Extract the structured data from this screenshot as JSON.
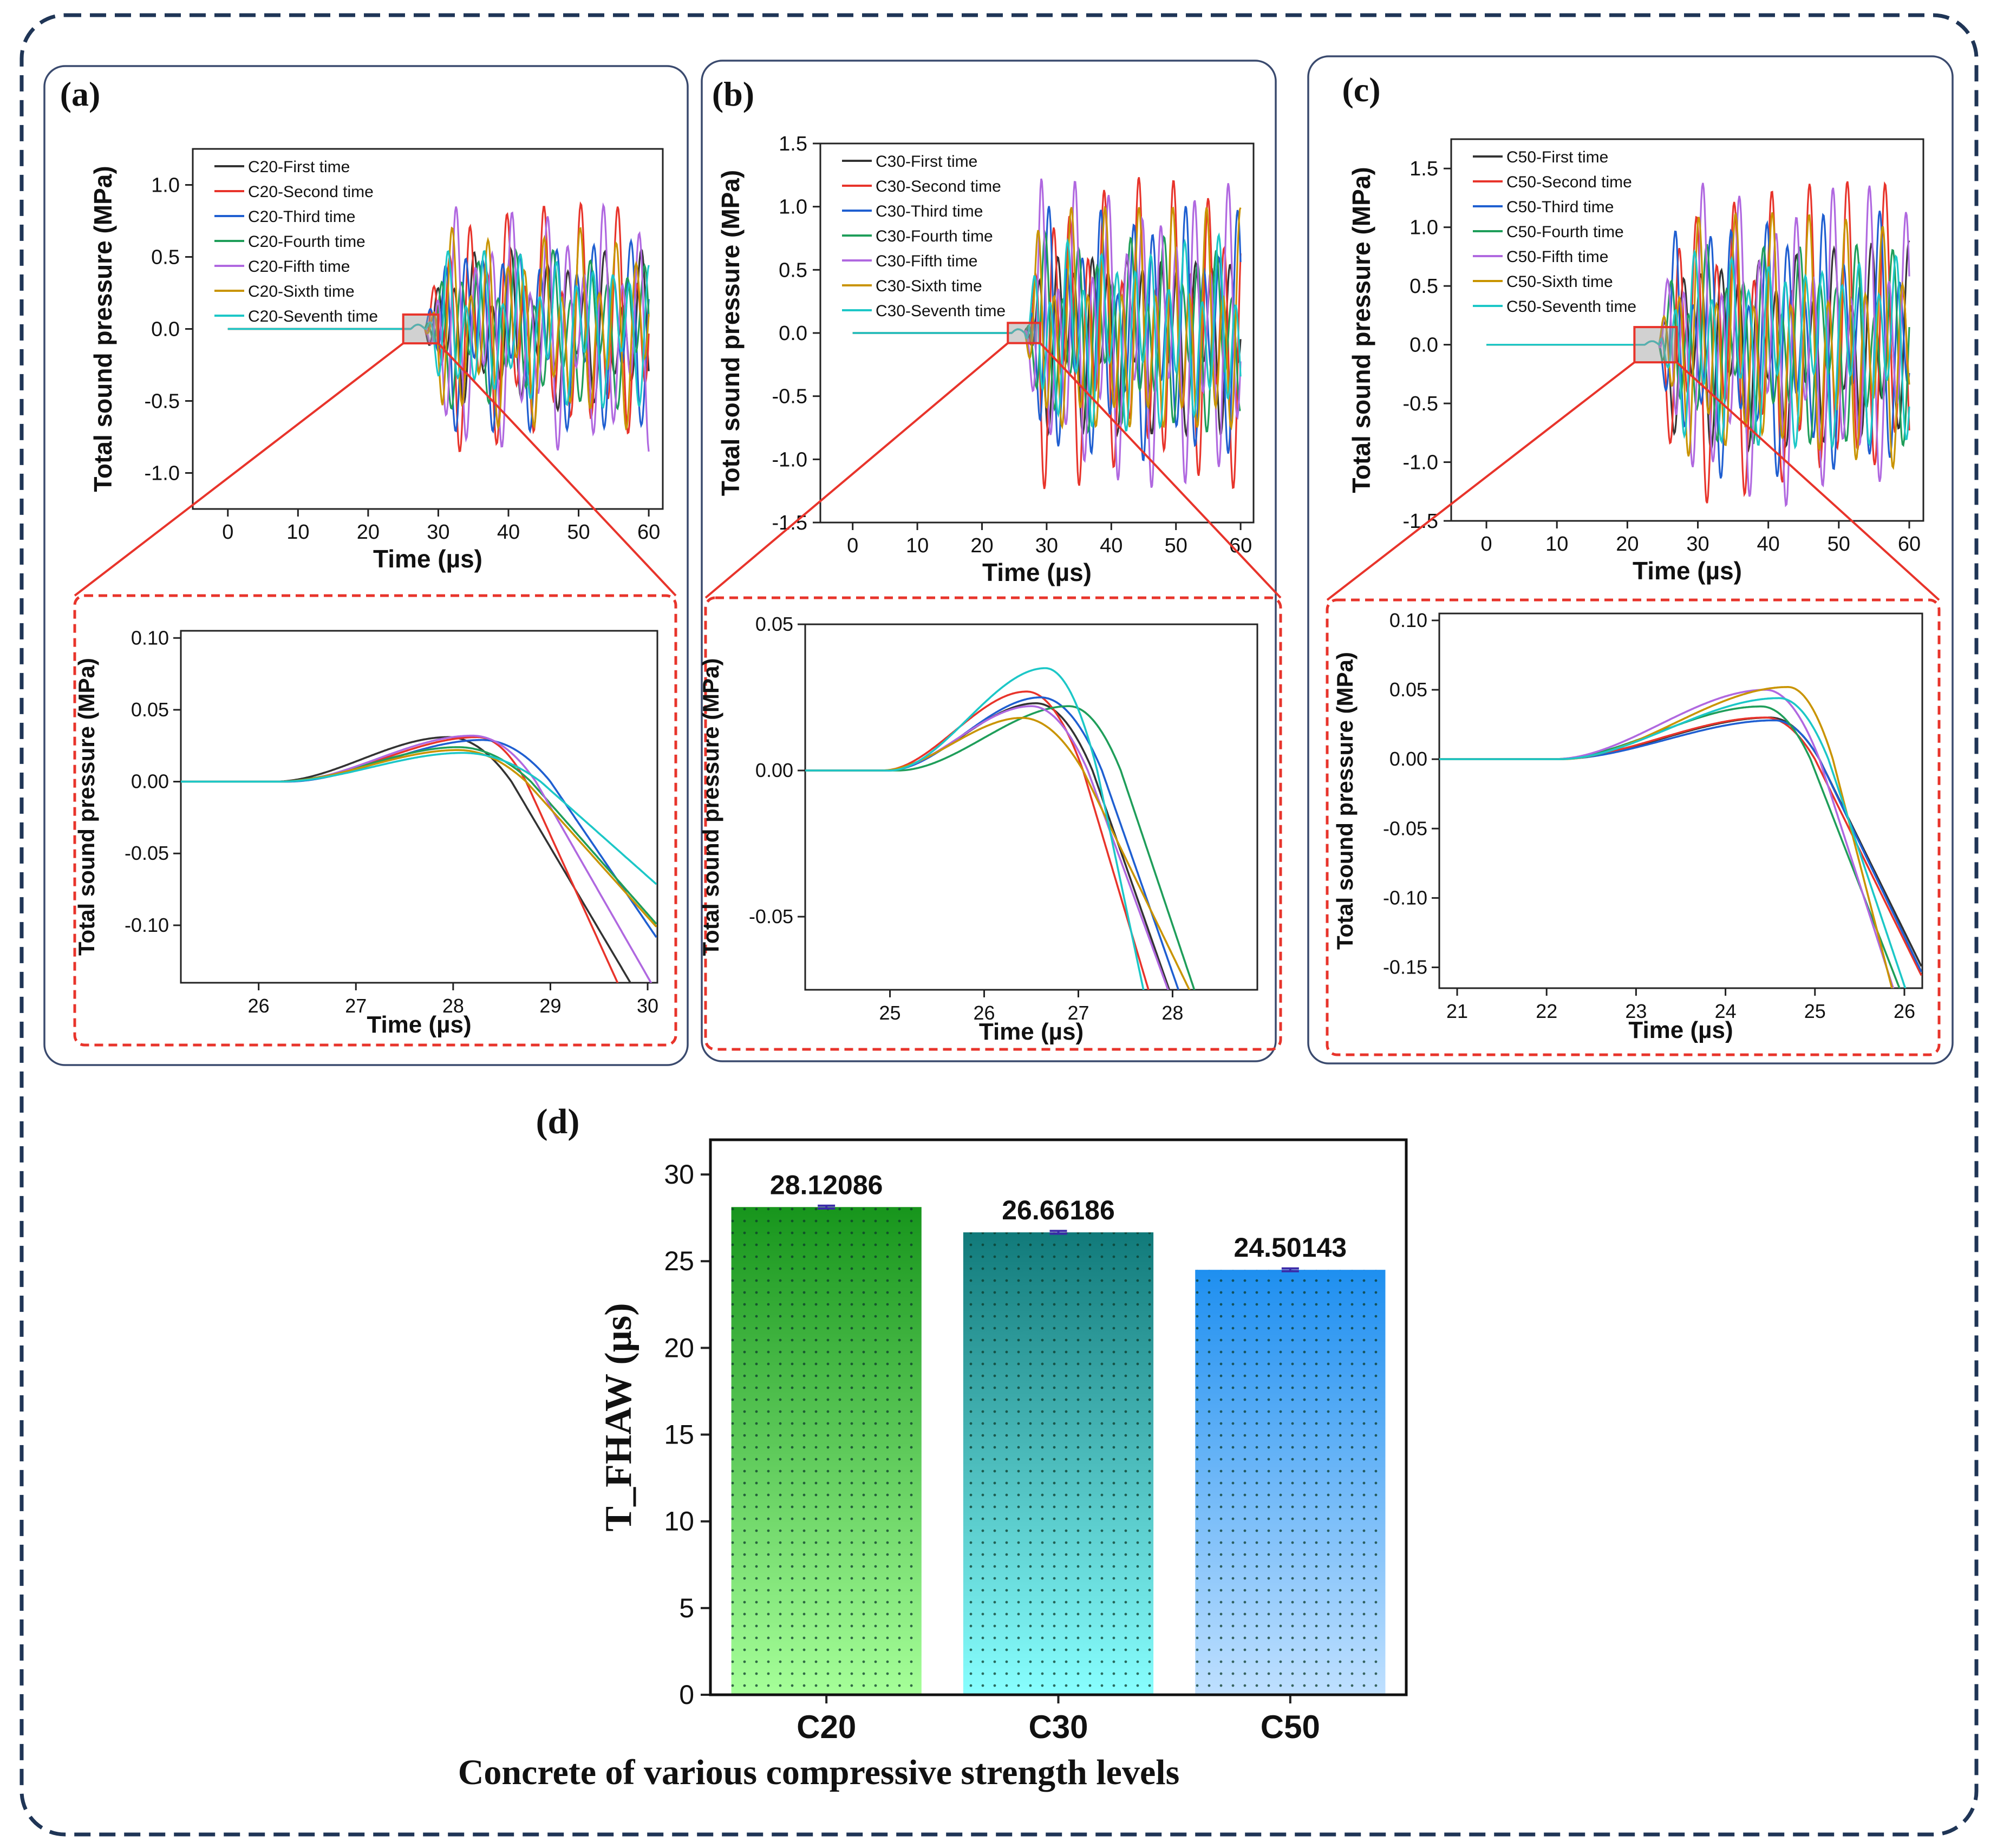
{
  "panel_labels": [
    "(a)",
    "(b)",
    "(c)",
    "(d)"
  ],
  "series_names": [
    "First time",
    "Second time",
    "Third time",
    "Fourth time",
    "Fifth time",
    "Sixth time",
    "Seventh time"
  ],
  "series_colors": [
    "#333333",
    "#e8342b",
    "#1f5fd1",
    "#1f9e5a",
    "#b068e0",
    "#c99400",
    "#1cc7c7"
  ],
  "legends": {
    "a": [
      "C20-First time",
      "C20-Second time",
      "C20-Third time",
      "C20-Fourth time",
      "C20-Fifth time",
      "C20-Sixth time",
      "C20-Seventh time"
    ],
    "b": [
      "C30-First time",
      "C30-Second time",
      "C30-Third time",
      "C30-Fourth time",
      "C30-Fifth time",
      "C30-Sixth time",
      "C30-Seventh time"
    ],
    "c": [
      "C50-First time",
      "C50-Second time",
      "C50-Third time",
      "C50-Fourth time",
      "C50-Fifth time",
      "C50-Sixth time",
      "C50-Seventh time"
    ]
  },
  "axis_text": {
    "time_label": "Time (µs)",
    "pressure_label": "Total sound pressure (MPa)",
    "bar_ylabel": "T_FHAW (µs)",
    "bar_xlabel": "Concrete of various compressive strength levels"
  },
  "chart_data": [
    {
      "id": "a-main",
      "type": "line",
      "xlabel": "Time (µs)",
      "ylabel": "Total sound pressure (MPa)",
      "xlim": [
        -5,
        62
      ],
      "ylim": [
        -1.25,
        1.25
      ],
      "xticks": [
        "0",
        "10",
        "20",
        "30",
        "40",
        "50",
        "60"
      ],
      "yticks": [
        "-1.0",
        "-0.5",
        "0.0",
        "0.5",
        "1.0"
      ],
      "onset_us": 28.1,
      "peak_amplitude_mpa": 0.88,
      "zoom_box_x_us": [
        25,
        30
      ],
      "zoom_box_y_mpa": [
        -0.1,
        0.1
      ]
    },
    {
      "id": "a-zoom",
      "type": "line",
      "xlabel": "Time (µs)",
      "ylabel": "Total sound pressure (MPa)",
      "xlim": [
        25.2,
        30.1
      ],
      "ylim": [
        -0.14,
        0.105
      ],
      "xticks": [
        "26",
        "27",
        "28",
        "29",
        "30"
      ],
      "yticks": [
        "-0.10",
        "-0.05",
        "0.00",
        "0.05",
        "0.10"
      ],
      "peaks_x_us": [
        27.95,
        28.25,
        28.3,
        28.05,
        28.2,
        28.05,
        28.1
      ],
      "peaks_y_mpa": [
        0.031,
        0.031,
        0.029,
        0.024,
        0.032,
        0.022,
        0.02
      ],
      "zero_crossings_us": [
        28.6,
        28.75,
        29.0,
        28.8,
        28.85,
        28.75,
        28.9
      ]
    },
    {
      "id": "b-main",
      "type": "line",
      "xlabel": "Time (µs)",
      "ylabel": "Total sound pressure (MPa)",
      "xlim": [
        -5,
        62
      ],
      "ylim": [
        -1.5,
        1.5
      ],
      "xticks": [
        "0",
        "10",
        "20",
        "30",
        "40",
        "50",
        "60"
      ],
      "yticks": [
        "-1.5",
        "-1.0",
        "-0.5",
        "0.0",
        "0.5",
        "1.0",
        "1.5"
      ],
      "onset_us": 26.6,
      "peak_amplitude_mpa": 1.25,
      "zoom_box_x_us": [
        24,
        29
      ],
      "zoom_box_y_mpa": [
        -0.08,
        0.08
      ]
    },
    {
      "id": "b-zoom",
      "type": "line",
      "xlabel": "Time (µs)",
      "ylabel": "Total sound pressure (MPa)",
      "xlim": [
        24.1,
        28.9
      ],
      "ylim": [
        -0.075,
        0.05
      ],
      "xticks": [
        "25",
        "26",
        "27",
        "28"
      ],
      "yticks": [
        "-0.05",
        "0.00",
        "0.05"
      ],
      "peaks_x_us": [
        26.55,
        26.45,
        26.6,
        26.9,
        26.5,
        26.4,
        26.65
      ],
      "peaks_y_mpa": [
        0.023,
        0.027,
        0.025,
        0.022,
        0.022,
        0.018,
        0.035
      ],
      "zero_crossings_us": [
        27.15,
        27.05,
        27.25,
        27.45,
        27.1,
        27.05,
        27.2
      ]
    },
    {
      "id": "c-main",
      "type": "line",
      "xlabel": "Time (µs)",
      "ylabel": "Total sound pressure (MPa)",
      "xlim": [
        -5,
        62
      ],
      "ylim": [
        -1.5,
        1.75
      ],
      "xticks": [
        "0",
        "10",
        "20",
        "30",
        "40",
        "50",
        "60"
      ],
      "yticks": [
        "-1.5",
        "-1.0",
        "-0.5",
        "0.0",
        "0.5",
        "1.0",
        "1.5"
      ],
      "onset_us": 24.5,
      "peak_amplitude_mpa": 1.4,
      "zoom_box_x_us": [
        21,
        27
      ],
      "zoom_box_y_mpa": [
        -0.15,
        0.15
      ]
    },
    {
      "id": "c-zoom",
      "type": "line",
      "xlabel": "Time (µs)",
      "ylabel": "Total sound pressure (MPa)",
      "xlim": [
        20.8,
        26.2
      ],
      "ylim": [
        -0.165,
        0.105
      ],
      "xticks": [
        "21",
        "22",
        "23",
        "24",
        "25",
        "26"
      ],
      "yticks": [
        "-0.15",
        "-0.10",
        "-0.05",
        "0.00",
        "0.05",
        "0.10"
      ],
      "peaks_x_us": [
        24.5,
        24.45,
        24.55,
        24.4,
        24.45,
        24.7,
        24.6
      ],
      "peaks_y_mpa": [
        0.03,
        0.03,
        0.028,
        0.038,
        0.05,
        0.052,
        0.044
      ],
      "zero_crossings_us": [
        25.05,
        25.0,
        25.05,
        24.95,
        25.05,
        25.2,
        25.15
      ]
    },
    {
      "id": "d-bars",
      "type": "bar",
      "categories": [
        "C20",
        "C30",
        "C50"
      ],
      "values": [
        28.12086,
        26.66186,
        24.50143
      ],
      "value_labels": [
        "28.12086",
        "26.66186",
        "24.50143"
      ],
      "errors": [
        0.08,
        0.08,
        0.08
      ],
      "ylabel": "T_FHAW (µs)",
      "xlabel": "Concrete of various compressive strength levels",
      "ylim": [
        0,
        32
      ],
      "yticks": [
        "0",
        "5",
        "10",
        "15",
        "20",
        "25",
        "30"
      ],
      "bar_colors_top": [
        "#17951c",
        "#117a7a",
        "#1e8ff0"
      ],
      "bar_colors_bottom": [
        "#a6ff99",
        "#88ffff",
        "#bfe0ff"
      ]
    }
  ]
}
